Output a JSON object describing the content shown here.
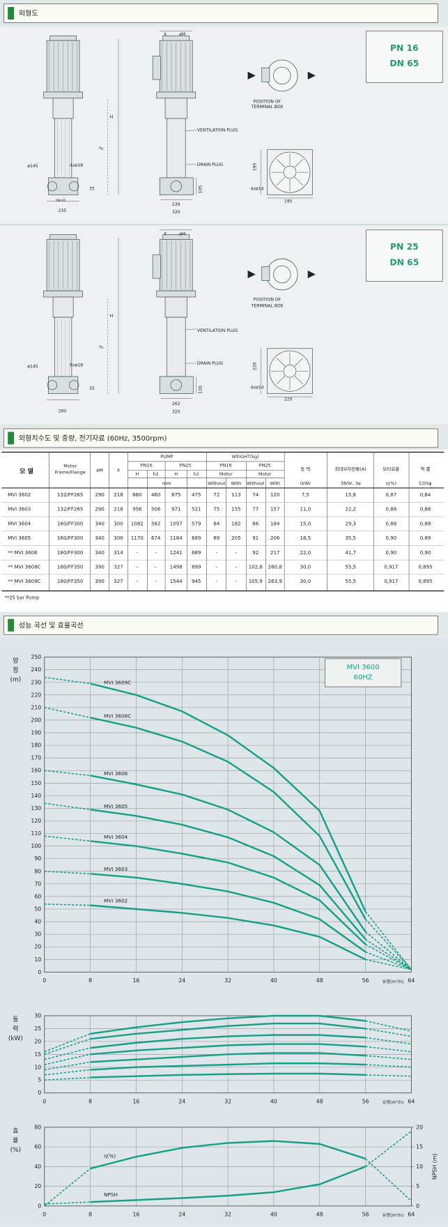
{
  "sections": [
    "외형도",
    "외형치수도 및 중량, 전기자료 (60Hz, 3500rpm)",
    "성능 곡선 및 효율곡선"
  ],
  "drawings": [
    {
      "badge": [
        "PN 16",
        "DN 65"
      ],
      "labels": [
        "X",
        "øM",
        "H",
        "h₂",
        "ø145",
        "4xø18",
        "35",
        "DN 65",
        "235",
        "105",
        "239",
        "320",
        "VENTILATION PLUG",
        "DRAIN PLUG",
        "POSITION OF",
        "TERMINAL BOX",
        "195",
        "195",
        "4xø14"
      ]
    },
    {
      "badge": [
        "PN 25",
        "DN 65"
      ],
      "labels": [
        "X",
        "øM",
        "H",
        "h₂",
        "ø145",
        "8xø18",
        "35",
        "260",
        "120",
        "262",
        "320",
        "VENTILATION PLUG",
        "DRAIN PLUG",
        "POSITION OF",
        "TERMINAL BOX",
        "220",
        "220",
        "4xø14"
      ]
    }
  ],
  "table": {
    "header": [
      "모 델",
      "Motor",
      "Frame/Flange",
      "øM",
      "X",
      "PUMP",
      "PN16",
      "PN25",
      "H",
      "h2",
      "H",
      "h2",
      "mm",
      "WEIGHT(kg)",
      "PN16",
      "PN25",
      "Motor",
      "Motor",
      "Without",
      "With",
      "Without",
      "With",
      "동 력",
      "(kW)",
      "최대부하전류(A)",
      "380V, 3ø",
      "모터효율",
      "η(%)",
      "역 률",
      "COSφ"
    ],
    "rows": [
      [
        "MVI 3602",
        "132/FF265",
        "290",
        "218",
        "860",
        "460",
        "875",
        "475",
        "72",
        "113",
        "74",
        "120",
        "7,5",
        "15,8",
        "0,87",
        "0,84"
      ],
      [
        "MVI 3603",
        "132/FF265",
        "290",
        "218",
        "956",
        "506",
        "971",
        "521",
        "75",
        "155",
        "77",
        "157",
        "11,0",
        "22,2",
        "0,88",
        "0,86"
      ],
      [
        "MVI 3604",
        "160/FF300",
        "340",
        "300",
        "1082",
        "582",
        "1097",
        "579",
        "84",
        "182",
        "86",
        "184",
        "15,0",
        "29,3",
        "0,88",
        "0,88"
      ],
      [
        "MVI 3605",
        "160/FF300",
        "340",
        "300",
        "1170",
        "674",
        "1184",
        "689",
        "89",
        "205",
        "91",
        "206",
        "18,5",
        "35,5",
        "0,90",
        "0,89"
      ],
      [
        "** MVI 3606",
        "180/FF300",
        "340",
        "314",
        "-",
        "-",
        "1241",
        "689",
        "-",
        "-",
        "92",
        "217",
        "22,0",
        "41,7",
        "0,90",
        "0,90"
      ],
      [
        "** MVI 3608C",
        "180/FF350",
        "390",
        "327",
        "-",
        "-",
        "1498",
        "899",
        "-",
        "-",
        "102,8",
        "260,8",
        "30,0",
        "55,5",
        "0,917",
        "0,895"
      ],
      [
        "** MVI 3609C",
        "180/FF350",
        "390",
        "327",
        "-",
        "-",
        "1544",
        "945",
        "-",
        "-",
        "105,9",
        "263,9",
        "30,0",
        "55,5",
        "0,917",
        "0,895"
      ]
    ],
    "footnote": "**25 bar Pump"
  },
  "chart_data": [
    {
      "type": "line",
      "y_label": [
        "양",
        "정",
        "(m)"
      ],
      "x_label": "유량(m³/h)",
      "annotation": [
        "MVI 3600",
        "60HZ"
      ],
      "x": [
        0,
        8,
        16,
        24,
        32,
        40,
        48,
        56,
        64
      ],
      "xlim": [
        0,
        64
      ],
      "xticks": [
        0,
        8,
        16,
        24,
        32,
        40,
        48,
        56,
        64
      ],
      "ylim": [
        0,
        250
      ],
      "yticks": [
        0,
        10,
        20,
        30,
        40,
        50,
        60,
        70,
        80,
        90,
        100,
        110,
        120,
        130,
        140,
        150,
        160,
        170,
        180,
        190,
        200,
        210,
        220,
        230,
        240,
        250
      ],
      "grid": true,
      "series": [
        {
          "name": "MVI 3609C",
          "color": "#17a086",
          "values": [
            234,
            229,
            220,
            207,
            188,
            162,
            128,
            48,
            2
          ]
        },
        {
          "name": "MVI 3608C",
          "color": "#17a086",
          "values": [
            210,
            202,
            194,
            183,
            167,
            143,
            108,
            42,
            2
          ]
        },
        {
          "name": "MVI 3606",
          "color": "#17a086",
          "values": [
            160,
            156,
            149,
            141,
            129,
            111,
            85,
            32,
            2
          ]
        },
        {
          "name": "MVI 3605",
          "color": "#17a086",
          "values": [
            134,
            129,
            124,
            117,
            107,
            92,
            69,
            26,
            2
          ]
        },
        {
          "name": "MVI 3604",
          "color": "#17a086",
          "values": [
            108,
            104,
            100,
            94,
            87,
            75,
            57,
            22,
            2
          ]
        },
        {
          "name": "MVI 3603",
          "color": "#17a086",
          "values": [
            80,
            78,
            75,
            70,
            64,
            55,
            42,
            16,
            2
          ]
        },
        {
          "name": "MVI 3602",
          "color": "#17a086",
          "values": [
            54,
            53,
            50,
            47,
            43,
            37,
            28,
            10,
            2
          ]
        }
      ]
    },
    {
      "type": "line",
      "y_label": [
        "동",
        "력",
        "(kW)"
      ],
      "x_label": "유량(m³/h)",
      "x": [
        0,
        8,
        16,
        24,
        32,
        40,
        48,
        56,
        64
      ],
      "xlim": [
        0,
        64
      ],
      "xticks": [
        0,
        8,
        16,
        24,
        32,
        40,
        48,
        56,
        64
      ],
      "ylim": [
        0,
        30
      ],
      "yticks": [
        0,
        5,
        10,
        15,
        20,
        25,
        30
      ],
      "grid": true,
      "series": [
        {
          "color": "#17a086",
          "values": [
            16,
            23,
            25.5,
            27.5,
            29,
            30,
            30,
            28,
            24
          ]
        },
        {
          "color": "#17a086",
          "values": [
            15,
            21,
            23,
            24.5,
            26,
            27,
            27,
            25,
            22
          ]
        },
        {
          "color": "#17a086",
          "values": [
            13,
            17.5,
            19.5,
            21,
            22,
            22.5,
            22.5,
            21.5,
            19
          ]
        },
        {
          "color": "#17a086",
          "values": [
            11,
            15,
            16.5,
            17.5,
            18.5,
            19,
            19,
            18,
            16
          ]
        },
        {
          "color": "#17a086",
          "values": [
            9,
            12,
            13,
            14,
            15,
            15.5,
            15.5,
            14.5,
            13
          ]
        },
        {
          "color": "#17a086",
          "values": [
            7,
            9,
            10,
            10.5,
            11,
            11.5,
            11.5,
            11,
            10
          ]
        },
        {
          "color": "#17a086",
          "values": [
            5,
            6,
            6.5,
            7,
            7.3,
            7.5,
            7.5,
            7,
            6.5
          ]
        }
      ]
    },
    {
      "type": "line",
      "y_label": [
        "효",
        "율",
        "(%)"
      ],
      "x_label": "유량(m³/h)",
      "y2_label": "NPSH (m)",
      "x": [
        0,
        8,
        16,
        24,
        32,
        40,
        48,
        56,
        64
      ],
      "xlim": [
        0,
        64
      ],
      "xticks": [
        0,
        8,
        16,
        24,
        32,
        40,
        48,
        56,
        64
      ],
      "ylim": [
        0,
        80
      ],
      "yticks": [
        0,
        20,
        40,
        60,
        80
      ],
      "y2lim": [
        0,
        20
      ],
      "y2ticks": [
        0,
        5,
        10,
        15,
        20
      ],
      "grid": true,
      "series": [
        {
          "name": "η(%)",
          "color": "#17a086",
          "values": [
            0,
            38,
            50,
            59,
            64,
            66,
            63,
            48,
            5
          ]
        },
        {
          "name": "NPSH",
          "color": "#17a086",
          "axis": "y2",
          "values": [
            0.5,
            1,
            1.5,
            2,
            2.6,
            3.5,
            5.5,
            10,
            19
          ]
        }
      ]
    }
  ]
}
